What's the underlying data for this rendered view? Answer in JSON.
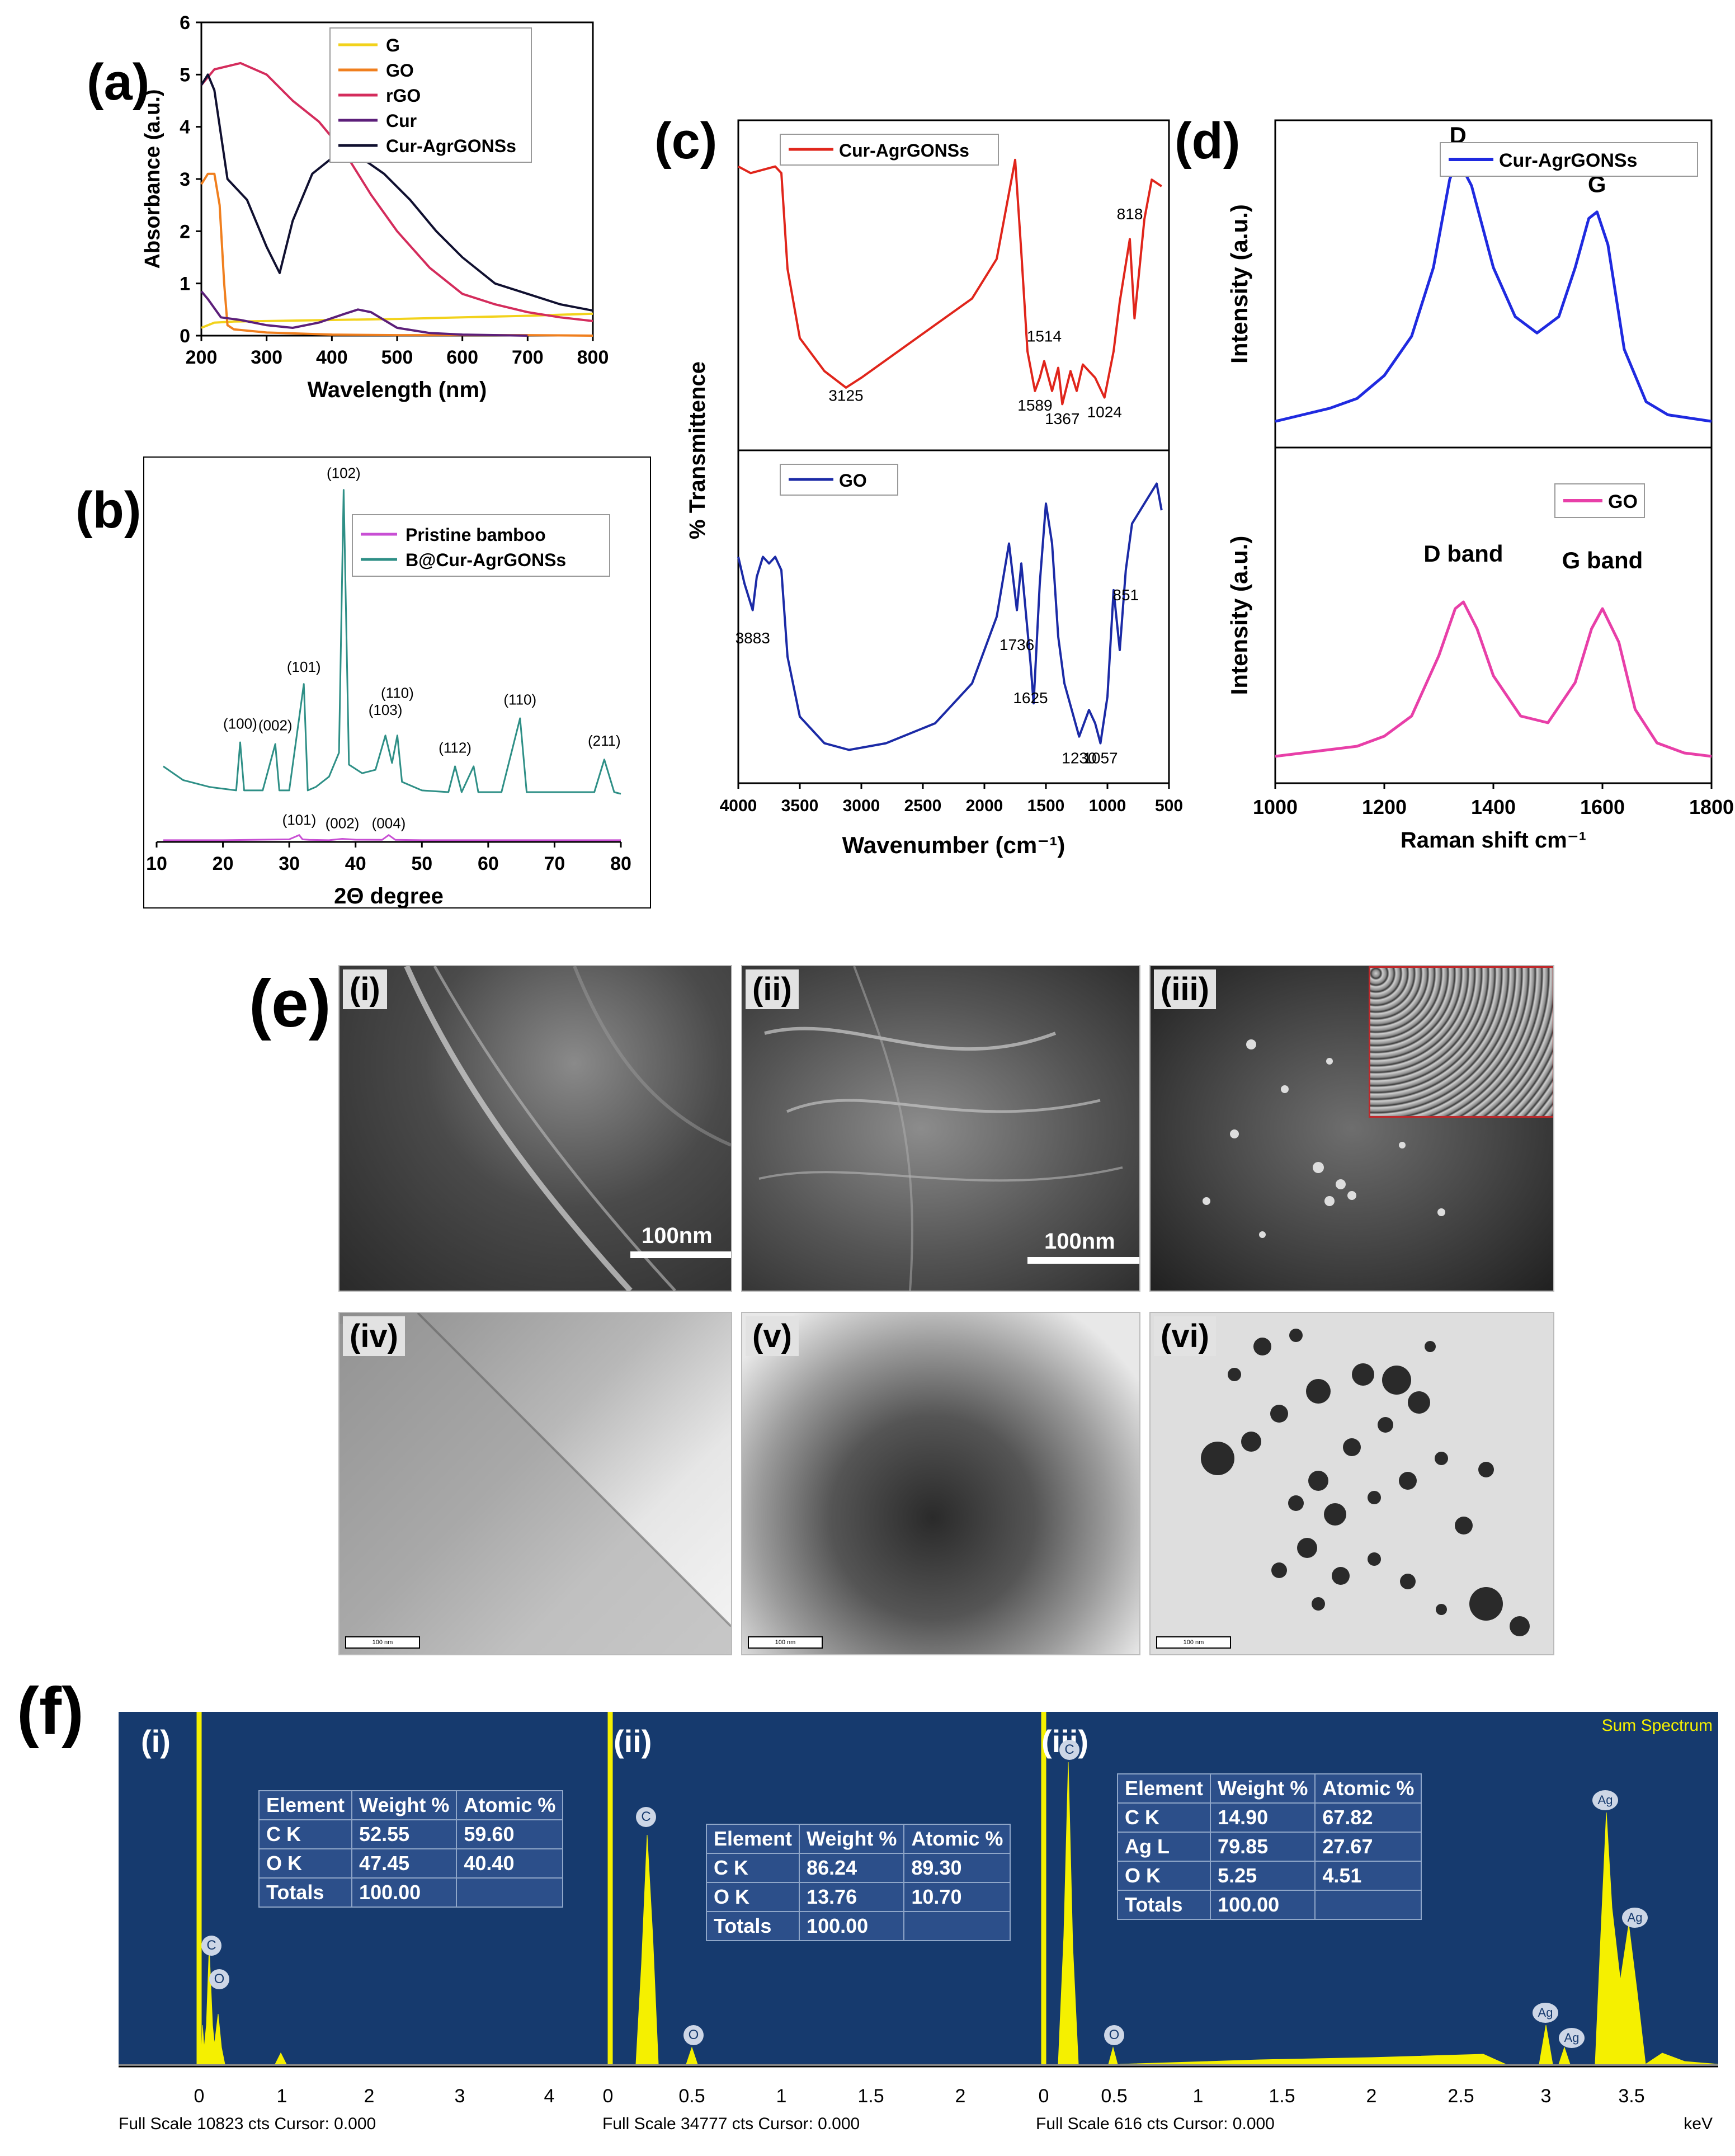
{
  "panel_labels": {
    "a": "(a)",
    "b": "(b)",
    "c": "(c)",
    "d": "(d)",
    "e": "(e)",
    "f": "(f)"
  },
  "chart_data": [
    {
      "id": "a",
      "type": "line",
      "xlabel": "Wavelength (nm)",
      "ylabel": "Absorbance (a.u.)",
      "xlim": [
        200,
        800
      ],
      "ylim": [
        0,
        6
      ],
      "xticks": [
        "200",
        "300",
        "400",
        "500",
        "600",
        "700",
        "800"
      ],
      "yticks": [
        "0",
        "1",
        "2",
        "3",
        "4",
        "5",
        "6"
      ],
      "legend_position": "top-right",
      "series": [
        {
          "name": "G",
          "color": "#f2d21b",
          "x": [
            200,
            220,
            250,
            300,
            400,
            500,
            600,
            700,
            800
          ],
          "y": [
            0.15,
            0.25,
            0.27,
            0.28,
            0.3,
            0.32,
            0.35,
            0.38,
            0.42
          ]
        },
        {
          "name": "GO",
          "color": "#f07f1e",
          "x": [
            200,
            210,
            220,
            228,
            235,
            240,
            250,
            300,
            400,
            500,
            600,
            700,
            800
          ],
          "y": [
            2.9,
            3.1,
            3.1,
            2.5,
            1.0,
            0.2,
            0.12,
            0.06,
            0.02,
            0.01,
            0.01,
            0.01,
            0.0
          ]
        },
        {
          "name": "rGO",
          "color": "#d42c5c",
          "x": [
            200,
            220,
            260,
            300,
            340,
            380,
            420,
            460,
            500,
            550,
            600,
            650,
            700,
            750,
            800
          ],
          "y": [
            4.8,
            5.1,
            5.22,
            5.0,
            4.5,
            4.1,
            3.5,
            2.7,
            2.0,
            1.3,
            0.8,
            0.6,
            0.45,
            0.35,
            0.28
          ]
        },
        {
          "name": "Cur",
          "color": "#5c1f7a",
          "x": [
            200,
            210,
            230,
            260,
            300,
            340,
            380,
            420,
            440,
            460,
            500,
            550,
            600,
            700
          ],
          "y": [
            0.85,
            0.7,
            0.35,
            0.3,
            0.2,
            0.15,
            0.25,
            0.42,
            0.5,
            0.45,
            0.15,
            0.05,
            0.02,
            0.0
          ]
        },
        {
          "name": "Cur-AgrGONSs",
          "color": "#101030",
          "x": [
            200,
            210,
            220,
            240,
            270,
            300,
            320,
            340,
            370,
            410,
            440,
            480,
            520,
            560,
            600,
            650,
            700,
            750,
            800
          ],
          "y": [
            4.8,
            5.0,
            4.7,
            3.0,
            2.6,
            1.7,
            1.2,
            2.2,
            3.1,
            3.5,
            3.45,
            3.1,
            2.6,
            2.0,
            1.5,
            1.0,
            0.8,
            0.6,
            0.48
          ]
        }
      ]
    },
    {
      "id": "b",
      "type": "line",
      "xlabel": "2Θ degree",
      "xlim": [
        10,
        80
      ],
      "xticks": [
        "10",
        "20",
        "30",
        "40",
        "50",
        "60",
        "70",
        "80"
      ],
      "legend_position": "top-right",
      "series": [
        {
          "name": "Pristine bamboo",
          "color": "#c84fd4",
          "x": [
            11,
            20,
            30,
            31.5,
            32,
            33,
            36,
            38,
            40,
            44,
            45,
            46,
            50,
            60,
            70,
            80
          ],
          "y": [
            1,
            1,
            1.5,
            4,
            1.5,
            1.2,
            1,
            1.8,
            1.3,
            1.2,
            4,
            1.2,
            1,
            1,
            1,
            1
          ]
        },
        {
          "name": "B@Cur-AgrGONSs",
          "color": "#2e8f86",
          "x": [
            11,
            14,
            18,
            22,
            22.6,
            23.2,
            26,
            27.9,
            28.5,
            30,
            32.2,
            32.8,
            34,
            36,
            37.5,
            38.2,
            39,
            41,
            43,
            44.5,
            45.5,
            46.3,
            47,
            50,
            54,
            55,
            56,
            57.8,
            58.5,
            62,
            64.8,
            65.8,
            68,
            72,
            76,
            77.5,
            79,
            80
          ],
          "y": [
            44,
            36,
            32,
            30,
            58,
            30,
            30,
            57,
            30,
            30,
            92,
            30,
            32,
            38,
            52,
            205,
            45,
            40,
            42,
            62,
            46,
            62,
            35,
            30,
            29,
            44,
            29,
            44,
            29,
            29,
            72,
            29,
            29,
            29,
            29,
            48,
            29,
            28
          ]
        }
      ],
      "annotations": [
        "(102)",
        "(101)",
        "(100)",
        "(002)",
        "(103)",
        "(110)",
        "(112)",
        "(110)",
        "(211)",
        "(101)",
        "(002)",
        "(004)"
      ]
    },
    {
      "id": "c",
      "type": "line",
      "xlabel": "Wavenumber (cm⁻¹)",
      "ylabel": "% Transmittence",
      "xlim": [
        4000,
        500
      ],
      "xticks": [
        "4000",
        "3500",
        "3000",
        "2500",
        "2000",
        "1500",
        "1000",
        "500"
      ],
      "series": [
        {
          "name": "Cur-AgrGONSs",
          "color": "#e0251b",
          "x": [
            4000,
            3900,
            3700,
            3650,
            3600,
            3500,
            3300,
            3125,
            3000,
            2700,
            2400,
            2100,
            1900,
            1800,
            1750,
            1700,
            1650,
            1589,
            1550,
            1514,
            1450,
            1400,
            1367,
            1300,
            1250,
            1200,
            1100,
            1024,
            950,
            900,
            818,
            780,
            700,
            640,
            560
          ],
          "y": [
            86,
            84,
            86,
            84,
            55,
            34,
            24,
            19,
            22,
            30,
            38,
            46,
            58,
            78,
            88,
            60,
            30,
            18,
            22,
            27,
            18,
            25,
            14,
            24,
            18,
            26,
            22,
            16,
            30,
            45,
            64,
            40,
            70,
            82,
            80
          ]
        },
        {
          "name": "GO",
          "color": "#1b2aa6",
          "x": [
            4000,
            3950,
            3883,
            3850,
            3800,
            3750,
            3700,
            3650,
            3600,
            3500,
            3300,
            3100,
            2800,
            2400,
            2100,
            1900,
            1800,
            1736,
            1700,
            1625,
            1600,
            1550,
            1500,
            1450,
            1400,
            1350,
            1230,
            1150,
            1100,
            1057,
            1000,
            950,
            900,
            851,
            800,
            700,
            600,
            560
          ],
          "y": [
            68,
            60,
            52,
            62,
            68,
            66,
            68,
            64,
            38,
            20,
            12,
            10,
            12,
            18,
            30,
            50,
            72,
            52,
            66,
            36,
            24,
            60,
            84,
            72,
            44,
            30,
            14,
            22,
            18,
            12,
            26,
            58,
            40,
            64,
            78,
            84,
            90,
            82
          ]
        }
      ],
      "annotations": [
        "3125",
        "1589",
        "1514",
        "1367",
        "1024",
        "818",
        "3883",
        "1736",
        "1625",
        "1230",
        "1057",
        "851"
      ]
    },
    {
      "id": "d",
      "type": "line",
      "xlabel": "Raman shift cm⁻¹",
      "ylabel": "Intensity (a.u.)",
      "xlim": [
        1000,
        1800
      ],
      "xticks": [
        "1000",
        "1200",
        "1400",
        "1600",
        "1800"
      ],
      "series": [
        {
          "name": "Cur-AgrGONSs",
          "color": "#1f2ae0",
          "x": [
            1000,
            1050,
            1100,
            1150,
            1200,
            1250,
            1290,
            1320,
            1335,
            1360,
            1400,
            1440,
            1480,
            1520,
            1550,
            1575,
            1590,
            1610,
            1640,
            1680,
            1720,
            1760,
            1800
          ],
          "y": [
            8,
            10,
            12,
            15,
            22,
            34,
            55,
            82,
            88,
            80,
            55,
            40,
            35,
            40,
            55,
            70,
            72,
            62,
            30,
            14,
            10,
            9,
            8
          ]
        },
        {
          "name": "GO",
          "color": "#e83fa8",
          "x": [
            1000,
            1050,
            1100,
            1150,
            1200,
            1250,
            1300,
            1330,
            1345,
            1370,
            1400,
            1450,
            1500,
            1550,
            1580,
            1600,
            1630,
            1660,
            1700,
            1750,
            1800
          ],
          "y": [
            8,
            9,
            10,
            11,
            14,
            20,
            38,
            52,
            54,
            46,
            32,
            20,
            18,
            30,
            46,
            52,
            42,
            22,
            12,
            9,
            8
          ]
        }
      ],
      "annotations": [
        "D",
        "G",
        "D band",
        "G band"
      ],
      "ylabel_lower": "Intensity (a.u.)"
    }
  ],
  "sem_tem": {
    "tiles": [
      {
        "tag": "(i)",
        "scalebar": "100nm"
      },
      {
        "tag": "(ii)",
        "scalebar": "100nm"
      },
      {
        "tag": "(iii)",
        "scalebar": ""
      },
      {
        "tag": "(iv)",
        "tembar": "100 nm"
      },
      {
        "tag": "(v)",
        "tembar": "100 nm"
      },
      {
        "tag": "(vi)",
        "tembar": "100 nm"
      }
    ]
  },
  "eds": {
    "sum_spectrum_label": "Sum Spectrum",
    "panels": [
      {
        "tag": "(i)",
        "footer": "Full Scale 10823 cts Cursor: 0.000",
        "xticks": [
          "0",
          "1",
          "2",
          "3",
          "4"
        ],
        "peak_labels": [
          "C",
          "O"
        ],
        "table": {
          "headers": [
            "Element",
            "Weight %",
            "Atomic %"
          ],
          "rows": [
            [
              "C K",
              "52.55",
              "59.60"
            ],
            [
              "O K",
              "47.45",
              "40.40"
            ],
            [
              "Totals",
              "100.00",
              ""
            ]
          ]
        }
      },
      {
        "tag": "(ii)",
        "footer": "Full Scale 34777 cts Cursor: 0.000",
        "xticks": [
          "0",
          "0.5",
          "1",
          "1.5",
          "2"
        ],
        "peak_labels": [
          "C",
          "O"
        ],
        "table": {
          "headers": [
            "Element",
            "Weight %",
            "Atomic %"
          ],
          "rows": [
            [
              "C K",
              "86.24",
              "89.30"
            ],
            [
              "O K",
              "13.76",
              "10.70"
            ],
            [
              "Totals",
              "100.00",
              ""
            ]
          ]
        }
      },
      {
        "tag": "(iii)",
        "footer": "Full Scale 616 cts Cursor: 0.000",
        "unit": "keV",
        "xticks": [
          "0",
          "0.5",
          "1",
          "1.5",
          "2",
          "2.5",
          "3",
          "3.5"
        ],
        "peak_labels": [
          "C",
          "O",
          "Ag",
          "Ag",
          "Ag",
          "Ag"
        ],
        "table": {
          "headers": [
            "Element",
            "Weight %",
            "Atomic %"
          ],
          "rows": [
            [
              "C K",
              "14.90",
              "67.82"
            ],
            [
              "Ag L",
              "79.85",
              "27.67"
            ],
            [
              "O K",
              "5.25",
              "4.51"
            ],
            [
              "Totals",
              "100.00",
              ""
            ]
          ]
        }
      }
    ]
  }
}
